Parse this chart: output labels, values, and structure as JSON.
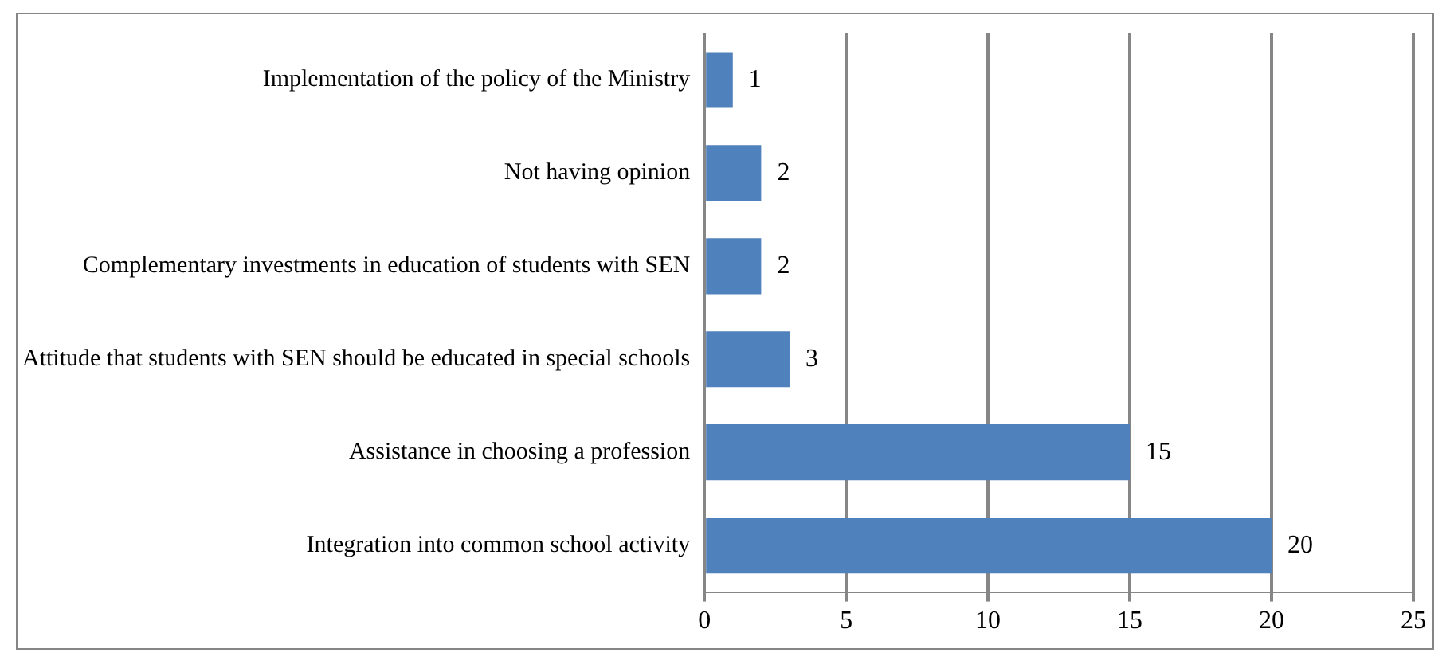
{
  "chart_data": {
    "type": "bar",
    "orientation": "horizontal",
    "categories": [
      "Implementation of the policy of the Ministry",
      "Not having opinion",
      "Complementary investments in education of students with SEN",
      "Attitude that students with SEN should be educated in special schools",
      "Assistance in choosing a profession",
      "Integration into common school activity"
    ],
    "values": [
      1,
      2,
      2,
      3,
      15,
      20
    ],
    "color": "#4f81bd",
    "xlim": [
      0,
      25
    ],
    "xticks": [
      0,
      5,
      10,
      15,
      20,
      25
    ],
    "grid": "x",
    "data_labels": true
  }
}
